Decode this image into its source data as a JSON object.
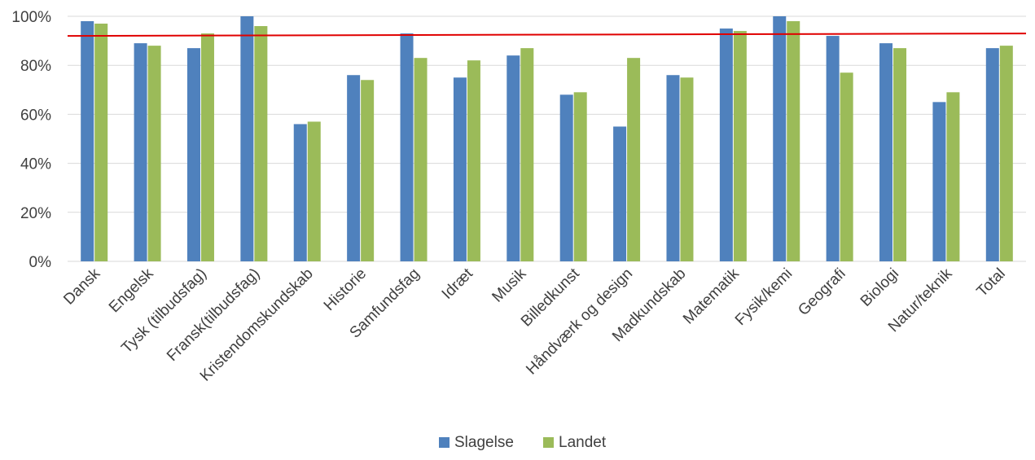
{
  "chart_data": {
    "type": "bar",
    "title": "",
    "xlabel": "",
    "ylabel": "",
    "ylim": [
      0,
      1
    ],
    "yticks": [
      "0%",
      "20%",
      "40%",
      "60%",
      "80%",
      "100%"
    ],
    "ytick_values": [
      0,
      0.2,
      0.4,
      0.6,
      0.8,
      1.0
    ],
    "grid": true,
    "legend_position": "bottom-center",
    "categories": [
      "Dansk",
      "Engelsk",
      "Tysk (tilbudsfag)",
      "Fransk(tilbudsfag)",
      "Kristendomskundskab",
      "Historie",
      "Samfundsfag",
      "Idræt",
      "Musik",
      "Billedkunst",
      "Håndværk og design",
      "Madkundskab",
      "Matematik",
      "Fysik/kemi",
      "Geografi",
      "Biologi",
      "Natur/teknik",
      "Total"
    ],
    "series": [
      {
        "name": "Slagelse",
        "color": "#4f81bd",
        "values": [
          0.98,
          0.89,
          0.87,
          1.0,
          0.56,
          0.76,
          0.93,
          0.75,
          0.84,
          0.68,
          0.55,
          0.76,
          0.95,
          1.0,
          0.92,
          0.89,
          0.65,
          0.87
        ]
      },
      {
        "name": "Landet",
        "color": "#9bbb59",
        "values": [
          0.97,
          0.88,
          0.93,
          0.96,
          0.57,
          0.74,
          0.83,
          0.82,
          0.87,
          0.69,
          0.83,
          0.75,
          0.94,
          0.98,
          0.77,
          0.87,
          0.69,
          0.88
        ]
      }
    ],
    "reference_line": {
      "color": "#e00000",
      "start": 0.92,
      "end": 0.93
    }
  }
}
